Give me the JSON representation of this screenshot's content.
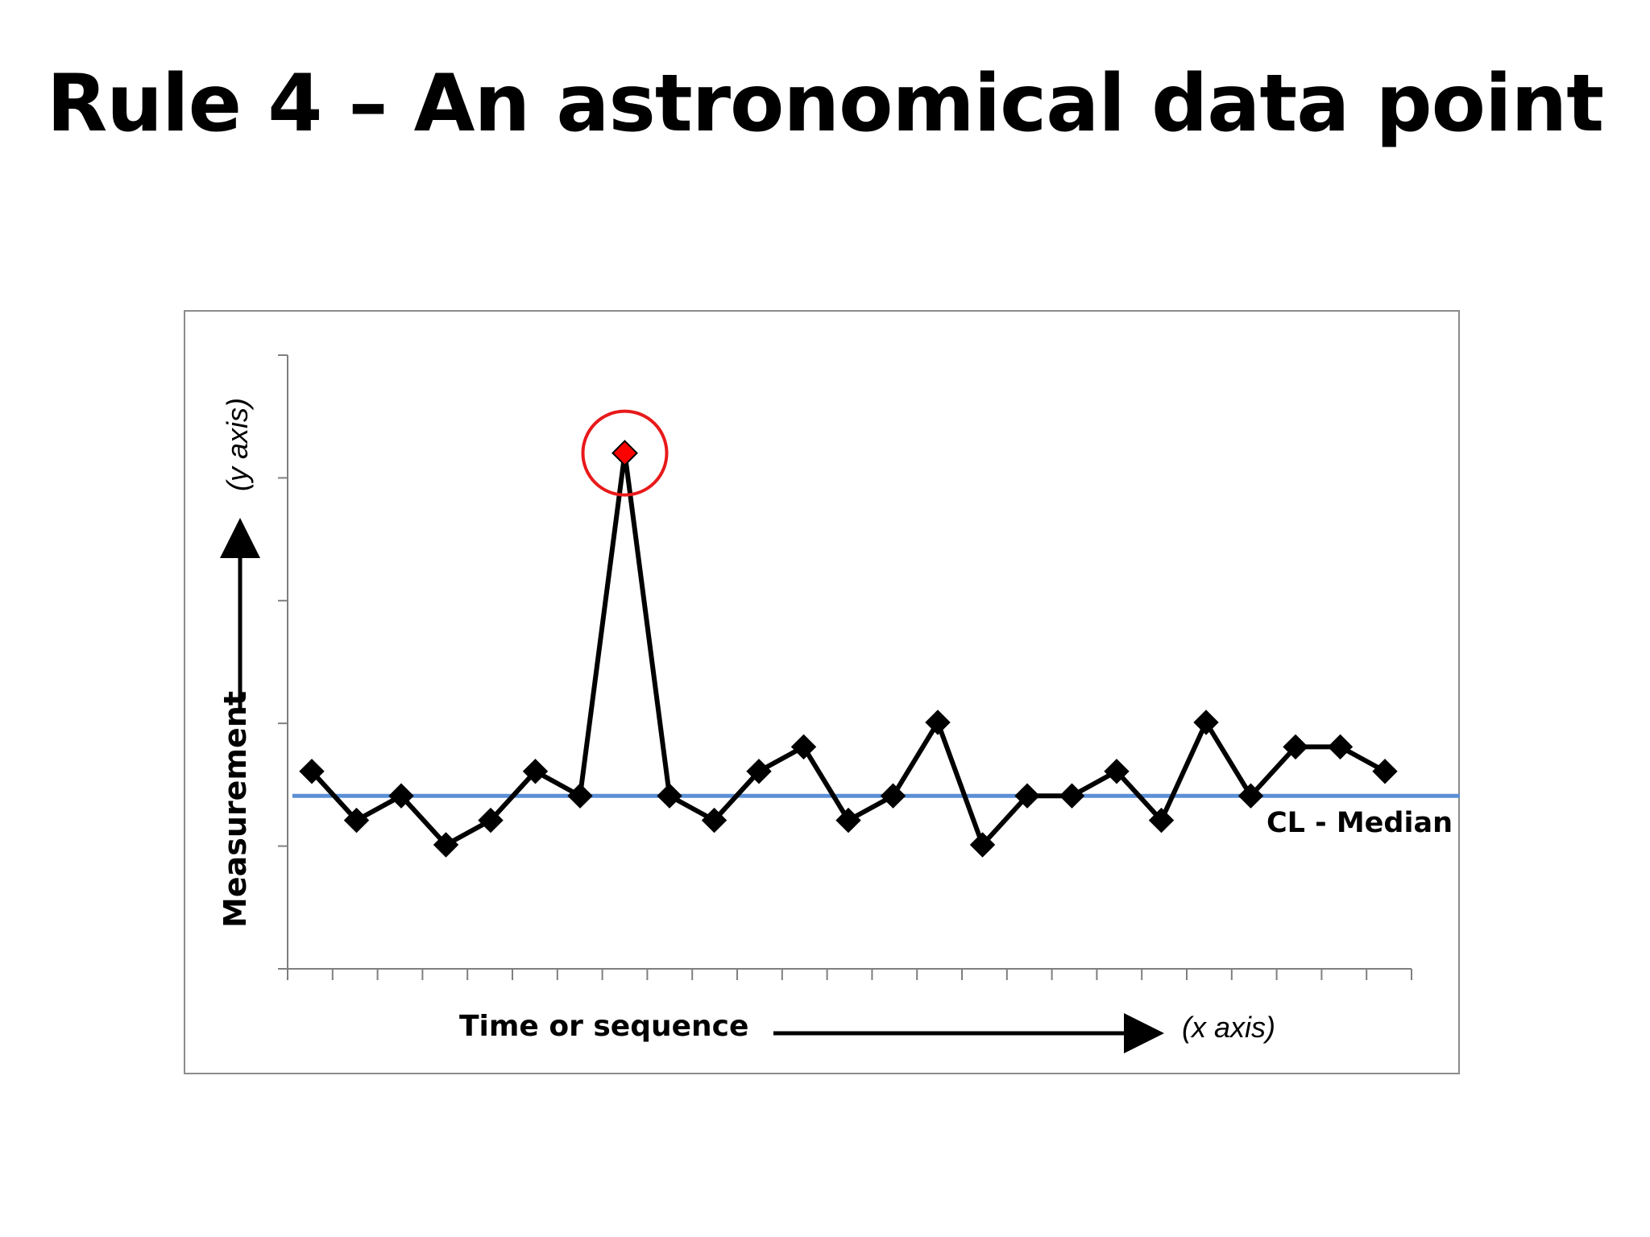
{
  "slide": {
    "title": "Rule 4 – An astronomical data point"
  },
  "chart_data": {
    "type": "line",
    "title": "",
    "xlabel": "Time or sequence",
    "xlabel_note": "(x axis)",
    "ylabel": "Measurement",
    "ylabel_note": "(y axis)",
    "x": [
      1,
      2,
      3,
      4,
      5,
      6,
      7,
      8,
      9,
      10,
      11,
      12,
      13,
      14,
      15,
      16,
      17,
      18,
      19,
      20,
      21,
      22,
      23,
      24,
      25
    ],
    "values": [
      3,
      1,
      2,
      0,
      1,
      3,
      2,
      16,
      2,
      1,
      3,
      4,
      1,
      2,
      5,
      0,
      2,
      2,
      3,
      1,
      5,
      2,
      4,
      4,
      3
    ],
    "center_line": {
      "name": "CL - Median",
      "value": 2,
      "color": "#5b8fd6"
    },
    "highlight": {
      "index": 7,
      "point_color": "#ff0000",
      "circle_color": "#e8191a"
    },
    "marker": "diamond",
    "line_color": "#000000",
    "ylim": [
      -3,
      22
    ],
    "xlim": [
      0.5,
      25.5
    ],
    "y_ticks": 6,
    "x_ticks": 25,
    "grid": false,
    "legend": "none"
  }
}
